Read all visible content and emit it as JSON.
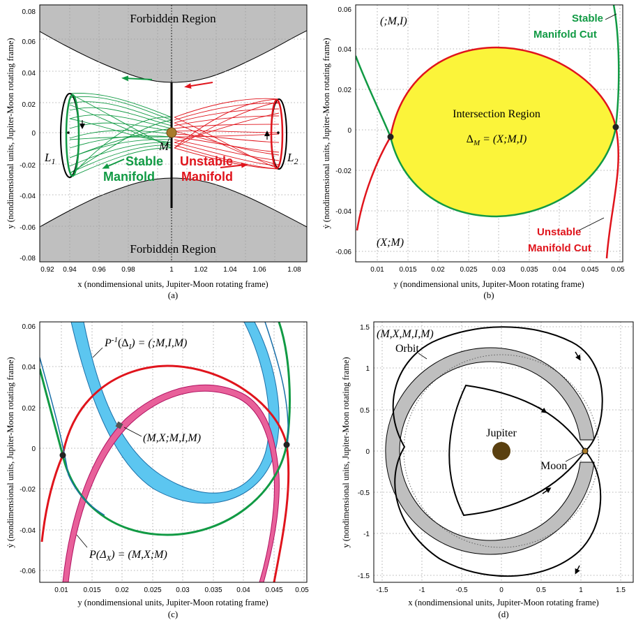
{
  "panels": {
    "a": {
      "caption": "(a)",
      "xlabel": "x (nondimensional units, Jupiter-Moon rotating frame)",
      "ylabel": "y (nondimensional units, Jupiter-Moon rotating frame)",
      "xticks": [
        "0.92",
        "0.94",
        "0.96",
        "0.98",
        "1",
        "1.02",
        "1.04",
        "1.06",
        "1.08"
      ],
      "yticks": [
        "0.08",
        "0.06",
        "0.04",
        "0.02",
        "0",
        "-0.02",
        "-0.04",
        "-0.06",
        "-0.08"
      ],
      "forbidden_top": "Forbidden Region",
      "forbidden_bottom": "Forbidden Region",
      "stable_1": "Stable",
      "stable_2": "Manifold",
      "unstable_1": "Unstable",
      "unstable_2": "Manifold",
      "L1": "L",
      "L1_sub": "1",
      "L2": "L",
      "L2_sub": "2",
      "M": "M"
    },
    "b": {
      "caption": "(b)",
      "xlabel": "y (nondimensional units, Jupiter-Moon rotating frame)",
      "ylabel": "ẏ (nondimensional units, Jupiter-Moon rotating frame)",
      "xticks": [
        "0.01",
        "0.015",
        "0.02",
        "0.025",
        "0.03",
        "0.035",
        "0.04",
        "0.045",
        "0.05"
      ],
      "yticks": [
        "0.06",
        "0.04",
        "0.02",
        "0",
        "-0.02",
        "-0.04",
        "-0.06"
      ],
      "label_MI": "(;M,I)",
      "label_XM": "(X;M)",
      "stable_cut_1": "Stable",
      "stable_cut_2": "Manifold Cut",
      "unstable_cut_1": "Unstable",
      "unstable_cut_2": "Manifold Cut",
      "intersection": "Intersection Region",
      "delta_M": "Δ",
      "delta_M_sub": "M",
      "delta_M_rhs": " = (X;M,I)"
    },
    "c": {
      "caption": "(c)",
      "xlabel": "y (nondimensional units, Jupiter-Moon rotating frame)",
      "ylabel": "ẏ (nondimensional units, Jupiter-Moon rotating frame)",
      "xticks": [
        "0.01",
        "0.015",
        "0.02",
        "0.025",
        "0.03",
        "0.035",
        "0.04",
        "0.045",
        "0.05"
      ],
      "yticks": [
        "0.06",
        "0.04",
        "0.02",
        "0",
        "-0.02",
        "-0.04",
        "-0.06"
      ],
      "pinv": "P",
      "pinv_sup": "-1",
      "pinv_arg": "(Δ",
      "pinv_sub": "I",
      "pinv_rhs": ") = (;M,I,M)",
      "mid": "(M,X;M,I,M)",
      "p": "P(Δ",
      "p_sub": "X",
      "p_rhs": ") = (M,X;M)"
    },
    "d": {
      "caption": "(d)",
      "xlabel": "x (nondimensional units, Jupiter-Moon rotating frame)",
      "ylabel": "y (nondimensional units, Jupiter-Moon rotating frame)",
      "xticks": [
        "-1.5",
        "-1",
        "-0.5",
        "0",
        "0.5",
        "1",
        "1.5"
      ],
      "yticks": [
        "1.5",
        "1",
        "0.5",
        "0",
        "-0.5",
        "-1",
        "-1.5"
      ],
      "itinerary": "(M,X,M,I,M)",
      "orbit": "Orbit",
      "jupiter": "Jupiter",
      "moon": "Moon"
    }
  },
  "colors": {
    "stable": "#119a44",
    "unstable": "#e0141c",
    "forbidden": "#bfbfbf",
    "intersection": "#fbf43a",
    "blue_band": "#5cc6f0",
    "pink_band": "#e8609a",
    "moon": "#a87a2a",
    "jupiter": "#5a4010"
  }
}
